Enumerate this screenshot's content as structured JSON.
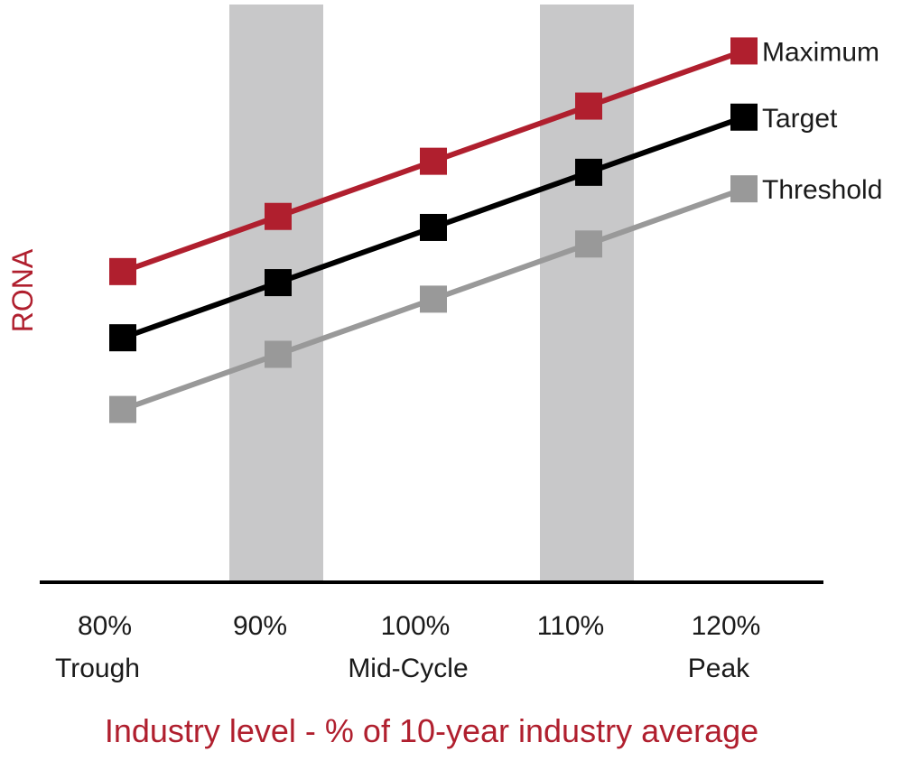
{
  "chart_data": {
    "type": "line",
    "ylabel": "RONA",
    "xlabel": "Industry level - % of 10-year industry average",
    "categories": [
      "80%",
      "90%",
      "100%",
      "110%",
      "120%"
    ],
    "category_sublabels": [
      "Trough",
      "",
      "Mid-Cycle",
      "",
      "Peak"
    ],
    "shaded_categories": [
      "90%",
      "110%"
    ],
    "ylim": [
      0,
      10
    ],
    "grid": false,
    "legend": "right, at line ends",
    "series": [
      {
        "name": "Maximum",
        "color": "#b01f2e",
        "values": [
          5.6,
          6.6,
          7.6,
          8.6,
          9.6
        ]
      },
      {
        "name": "Target",
        "color": "#000000",
        "values": [
          4.4,
          5.4,
          6.4,
          7.4,
          8.4
        ]
      },
      {
        "name": "Threshold",
        "color": "#999999",
        "values": [
          3.1,
          4.1,
          5.1,
          6.1,
          7.1
        ]
      }
    ],
    "colors": {
      "accent": "#b01f2e",
      "band": "#c8c8c9",
      "axis": "#000000"
    }
  }
}
